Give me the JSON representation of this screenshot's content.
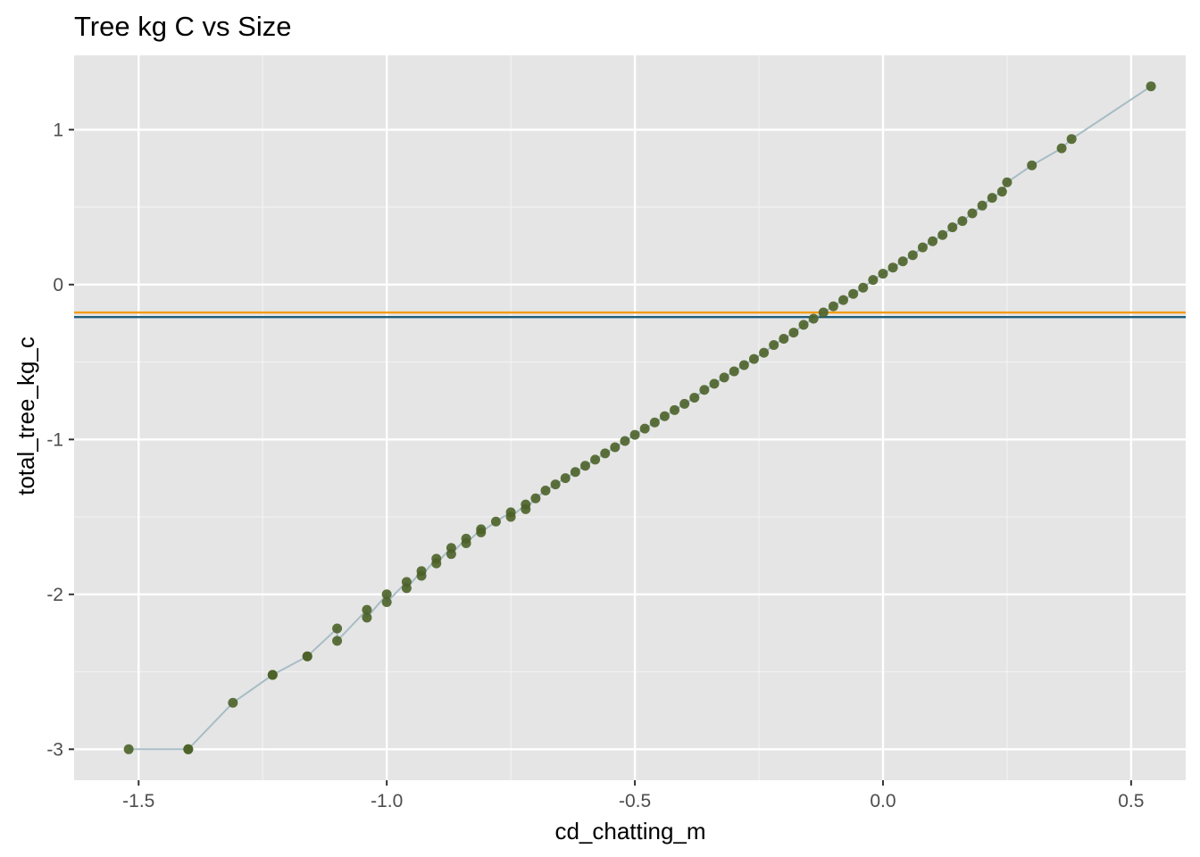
{
  "chart_data": {
    "type": "scatter",
    "title": "Tree kg C vs Size",
    "xlabel": "cd_chatting_m",
    "ylabel": "total_tree_kg_c",
    "xlim": [
      -1.63,
      0.61
    ],
    "ylim": [
      -3.2,
      1.48
    ],
    "x_ticks": [
      -1.5,
      -1.0,
      -0.5,
      0.0,
      0.5
    ],
    "x_tick_labels": [
      "-1.5",
      "-1.0",
      "-0.5",
      "0.0",
      "0.5"
    ],
    "y_ticks": [
      -3,
      -2,
      -1,
      0,
      1
    ],
    "y_tick_labels": [
      "-3",
      "-2",
      "-1",
      "0",
      "1"
    ],
    "grid": true,
    "background": "#e5e5e5",
    "point_color": "#4b6228",
    "line_color": "#a7bcc5",
    "hlines": [
      {
        "y": -0.18,
        "color": "#f39c12"
      },
      {
        "y": -0.21,
        "color": "#1f5d7a"
      }
    ],
    "series": [
      {
        "x": [
          -1.52,
          -1.4,
          -1.4,
          -1.31,
          -1.23,
          -1.23,
          -1.16,
          -1.16,
          -1.1,
          -1.1,
          -1.04,
          -1.04,
          -1.0,
          -1.0,
          -0.96,
          -0.96,
          -0.93,
          -0.93,
          -0.9,
          -0.9,
          -0.87,
          -0.87,
          -0.84,
          -0.84,
          -0.81,
          -0.81,
          -0.78,
          -0.75,
          -0.75,
          -0.72,
          -0.72,
          -0.7,
          -0.68,
          -0.66,
          -0.64,
          -0.62,
          -0.6,
          -0.58,
          -0.56,
          -0.54,
          -0.52,
          -0.5,
          -0.48,
          -0.46,
          -0.44,
          -0.42,
          -0.4,
          -0.38,
          -0.36,
          -0.34,
          -0.32,
          -0.3,
          -0.28,
          -0.26,
          -0.24,
          -0.22,
          -0.2,
          -0.18,
          -0.16,
          -0.14,
          -0.12,
          -0.1,
          -0.08,
          -0.06,
          -0.04,
          -0.02,
          0.0,
          0.02,
          0.04,
          0.06,
          0.08,
          0.1,
          0.12,
          0.14,
          0.16,
          0.18,
          0.2,
          0.22,
          0.24,
          0.25,
          0.3,
          0.36,
          0.38,
          0.54
        ],
        "y": [
          -3.0,
          -3.0,
          -3.0,
          -2.7,
          -2.52,
          -2.52,
          -2.4,
          -2.4,
          -2.22,
          -2.3,
          -2.1,
          -2.15,
          -2.0,
          -2.05,
          -1.92,
          -1.96,
          -1.85,
          -1.88,
          -1.77,
          -1.8,
          -1.7,
          -1.74,
          -1.64,
          -1.67,
          -1.58,
          -1.6,
          -1.53,
          -1.47,
          -1.5,
          -1.42,
          -1.45,
          -1.38,
          -1.33,
          -1.29,
          -1.25,
          -1.21,
          -1.17,
          -1.13,
          -1.09,
          -1.05,
          -1.01,
          -0.97,
          -0.93,
          -0.89,
          -0.85,
          -0.81,
          -0.77,
          -0.73,
          -0.68,
          -0.64,
          -0.6,
          -0.56,
          -0.52,
          -0.48,
          -0.44,
          -0.39,
          -0.35,
          -0.31,
          -0.26,
          -0.22,
          -0.18,
          -0.14,
          -0.1,
          -0.06,
          -0.02,
          0.03,
          0.07,
          0.11,
          0.15,
          0.19,
          0.24,
          0.28,
          0.32,
          0.37,
          0.41,
          0.46,
          0.51,
          0.56,
          0.6,
          0.66,
          0.77,
          0.88,
          0.94,
          1.28
        ]
      }
    ]
  }
}
